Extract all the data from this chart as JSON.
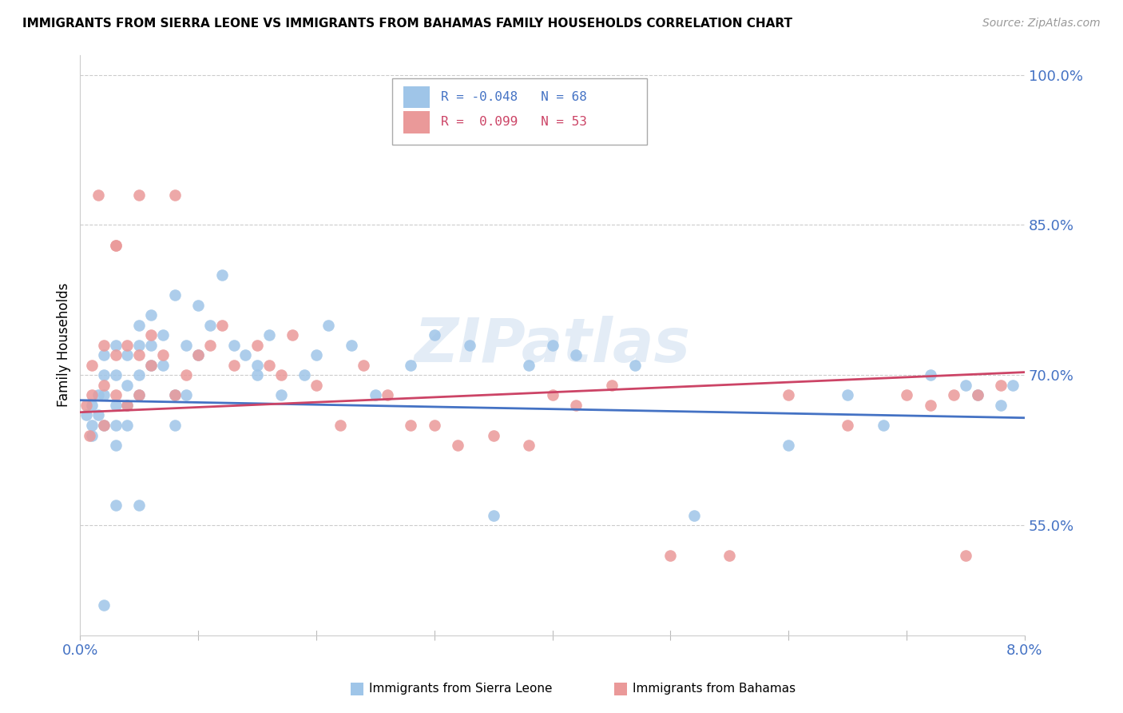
{
  "title": "IMMIGRANTS FROM SIERRA LEONE VS IMMIGRANTS FROM BAHAMAS FAMILY HOUSEHOLDS CORRELATION CHART",
  "source": "Source: ZipAtlas.com",
  "ylabel": "Family Households",
  "xmin": 0.0,
  "xmax": 0.08,
  "ymin": 0.44,
  "ymax": 1.02,
  "ytick_vals": [
    0.55,
    0.7,
    0.85,
    1.0
  ],
  "ytick_labels": [
    "55.0%",
    "70.0%",
    "85.0%",
    "100.0%"
  ],
  "blue_color": "#9fc5e8",
  "pink_color": "#ea9999",
  "line_blue": "#4472c4",
  "line_pink": "#cc4466",
  "axis_color": "#4472c4",
  "watermark": "ZIPatlas",
  "blue_intercept": 0.675,
  "blue_slope": -0.22,
  "pink_intercept": 0.663,
  "pink_slope": 0.5,
  "sl_x": [
    0.0005,
    0.001,
    0.001,
    0.001,
    0.0015,
    0.0015,
    0.002,
    0.002,
    0.002,
    0.002,
    0.003,
    0.003,
    0.003,
    0.003,
    0.003,
    0.004,
    0.004,
    0.004,
    0.004,
    0.005,
    0.005,
    0.005,
    0.005,
    0.006,
    0.006,
    0.006,
    0.007,
    0.007,
    0.008,
    0.008,
    0.009,
    0.009,
    0.01,
    0.01,
    0.011,
    0.012,
    0.013,
    0.014,
    0.015,
    0.016,
    0.017,
    0.019,
    0.021,
    0.023,
    0.025,
    0.028,
    0.03,
    0.033,
    0.035,
    0.038,
    0.042,
    0.047,
    0.052,
    0.06,
    0.065,
    0.068,
    0.072,
    0.075,
    0.076,
    0.078,
    0.079,
    0.04,
    0.02,
    0.015,
    0.008,
    0.005,
    0.003,
    0.002
  ],
  "sl_y": [
    0.66,
    0.67,
    0.65,
    0.64,
    0.68,
    0.66,
    0.72,
    0.7,
    0.68,
    0.65,
    0.73,
    0.7,
    0.67,
    0.65,
    0.63,
    0.72,
    0.69,
    0.67,
    0.65,
    0.75,
    0.73,
    0.7,
    0.68,
    0.76,
    0.73,
    0.71,
    0.74,
    0.71,
    0.78,
    0.65,
    0.73,
    0.68,
    0.77,
    0.72,
    0.75,
    0.8,
    0.73,
    0.72,
    0.7,
    0.74,
    0.68,
    0.7,
    0.75,
    0.73,
    0.68,
    0.71,
    0.74,
    0.73,
    0.56,
    0.71,
    0.72,
    0.71,
    0.56,
    0.63,
    0.68,
    0.65,
    0.7,
    0.69,
    0.68,
    0.67,
    0.69,
    0.73,
    0.72,
    0.71,
    0.68,
    0.57,
    0.57,
    0.47
  ],
  "bh_x": [
    0.0005,
    0.0008,
    0.001,
    0.001,
    0.0015,
    0.002,
    0.002,
    0.002,
    0.003,
    0.003,
    0.003,
    0.004,
    0.004,
    0.005,
    0.005,
    0.006,
    0.006,
    0.007,
    0.008,
    0.009,
    0.01,
    0.011,
    0.012,
    0.013,
    0.015,
    0.016,
    0.017,
    0.018,
    0.02,
    0.022,
    0.024,
    0.026,
    0.028,
    0.03,
    0.032,
    0.035,
    0.038,
    0.04,
    0.042,
    0.045,
    0.05,
    0.055,
    0.06,
    0.065,
    0.07,
    0.072,
    0.074,
    0.075,
    0.076,
    0.078,
    0.003,
    0.005,
    0.008
  ],
  "bh_y": [
    0.67,
    0.64,
    0.71,
    0.68,
    0.88,
    0.73,
    0.69,
    0.65,
    0.83,
    0.72,
    0.68,
    0.73,
    0.67,
    0.72,
    0.68,
    0.74,
    0.71,
    0.72,
    0.88,
    0.7,
    0.72,
    0.73,
    0.75,
    0.71,
    0.73,
    0.71,
    0.7,
    0.74,
    0.69,
    0.65,
    0.71,
    0.68,
    0.65,
    0.65,
    0.63,
    0.64,
    0.63,
    0.68,
    0.67,
    0.69,
    0.52,
    0.52,
    0.68,
    0.65,
    0.68,
    0.67,
    0.68,
    0.52,
    0.68,
    0.69,
    0.83,
    0.88,
    0.68
  ]
}
